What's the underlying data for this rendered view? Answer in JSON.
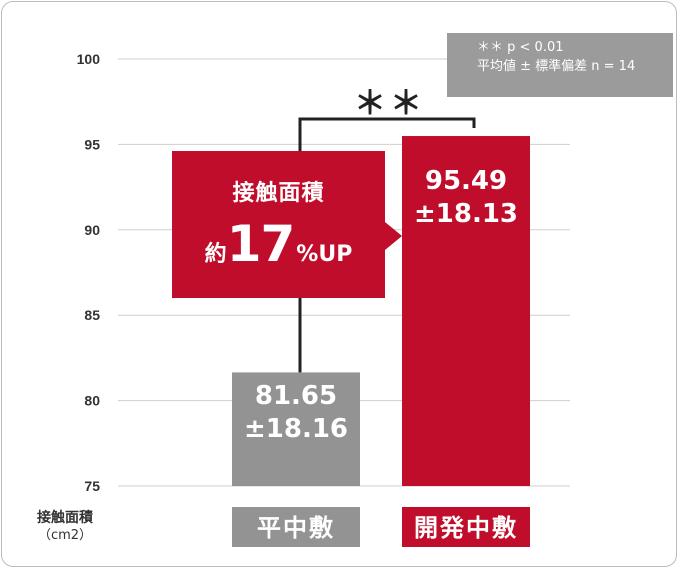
{
  "chart_data": {
    "type": "bar",
    "categories": [
      "平中敷",
      "開発中敷"
    ],
    "values": [
      81.65,
      95.49
    ],
    "value_labels": [
      [
        "81.65",
        "±18.16"
      ],
      [
        "95.49",
        "±18.13"
      ]
    ],
    "ylabel": "接触面積",
    "ylabel_unit": "（cm2）",
    "ylim": [
      75,
      100
    ],
    "yticks": [
      100,
      95,
      90,
      85,
      80,
      75
    ],
    "grid": true,
    "colors": [
      "#939393",
      "#c00d2b"
    ],
    "significance": "＊＊",
    "stats_note": [
      "＊＊ p < 0.01",
      "平均値 ± 標準偏差 n = 14"
    ],
    "callout": {
      "title": "接触面積",
      "prefix": "約",
      "number": "17",
      "suffix": "%UP"
    }
  }
}
